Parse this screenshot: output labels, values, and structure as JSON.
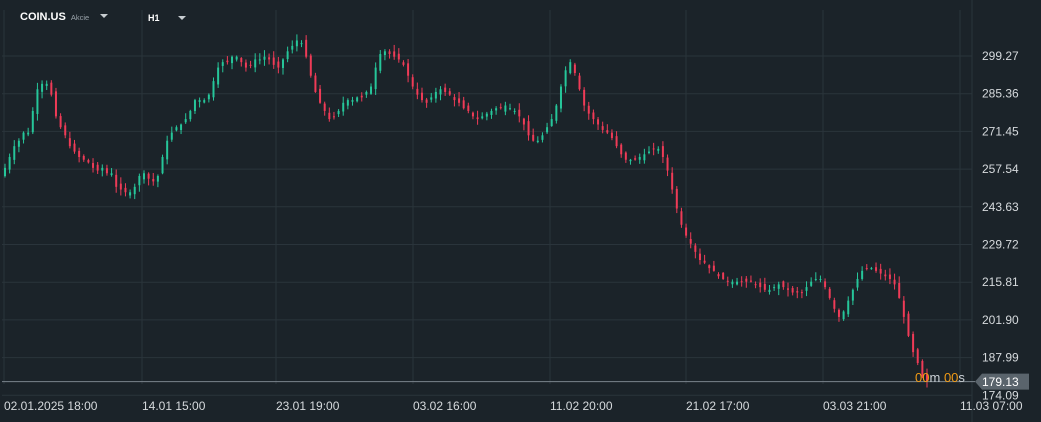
{
  "toolbar": {
    "symbol": "COIN.US",
    "symbol_type": "Akcie",
    "timeframe": "H1"
  },
  "countdown": {
    "minutes": "00",
    "minutes_unit": "m",
    "seconds": "00",
    "seconds_unit": "s"
  },
  "colors": {
    "background": "#1b2329",
    "up": "#26c69a",
    "down": "#ef3b57",
    "grid": "#2a343b",
    "last_price_box": "#5a646c"
  },
  "chart_data": {
    "type": "candlestick",
    "title": "",
    "y_ticks": [
      "299.27",
      "285.36",
      "271.45",
      "257.54",
      "243.63",
      "229.72",
      "215.81",
      "201.90",
      "187.99",
      "174.09"
    ],
    "ylim": [
      172.0,
      314.0
    ],
    "x_ticks": [
      "02.01.2025  18:00",
      "14.01  15:00",
      "23.01  19:00",
      "03.02  16:00",
      "11.02  20:00",
      "21.02  17:00",
      "03.03  21:00",
      "11.03  07:00"
    ],
    "last_price": "179.13",
    "grid": true,
    "close_series": [
      258,
      262,
      266,
      268,
      271,
      271,
      279,
      287,
      289,
      289,
      285,
      277,
      273,
      270,
      266,
      264,
      262,
      261,
      260,
      258,
      257,
      258,
      256,
      256,
      251,
      250,
      249,
      249,
      251,
      255,
      256,
      254,
      253,
      255,
      262,
      268,
      271,
      273,
      274,
      276,
      279,
      283,
      283,
      283,
      285,
      290,
      295,
      297,
      297,
      299,
      299,
      297,
      295,
      296,
      298,
      298,
      299,
      298,
      296,
      295,
      298,
      301,
      303,
      305,
      304,
      299,
      292,
      286,
      282,
      279,
      276,
      277,
      279,
      282,
      283,
      283,
      284,
      284,
      286,
      288,
      295,
      300,
      301,
      300,
      299,
      298,
      296,
      292,
      288,
      285,
      283,
      282,
      284,
      286,
      287,
      286,
      285,
      283,
      282,
      280,
      279,
      277,
      276,
      277,
      278,
      279,
      280,
      280,
      281,
      280,
      279,
      277,
      274,
      270,
      268,
      268,
      270,
      273,
      276,
      281,
      288,
      294,
      297,
      293,
      287,
      281,
      278,
      276,
      274,
      272,
      271,
      269,
      266,
      263,
      261,
      261,
      261,
      262,
      263,
      264,
      265,
      265,
      262,
      257,
      250,
      243,
      237,
      233,
      230,
      227,
      224,
      223,
      221,
      220,
      218,
      217,
      216,
      216,
      216,
      216,
      216,
      216,
      215,
      214,
      213,
      213,
      214,
      215,
      214,
      213,
      212,
      212,
      212,
      214,
      216,
      217,
      217,
      214,
      210,
      206,
      203,
      205,
      209,
      213,
      217,
      220,
      221,
      221,
      220,
      219,
      218,
      217,
      215,
      210,
      203,
      196,
      190,
      186,
      181,
      179
    ]
  }
}
